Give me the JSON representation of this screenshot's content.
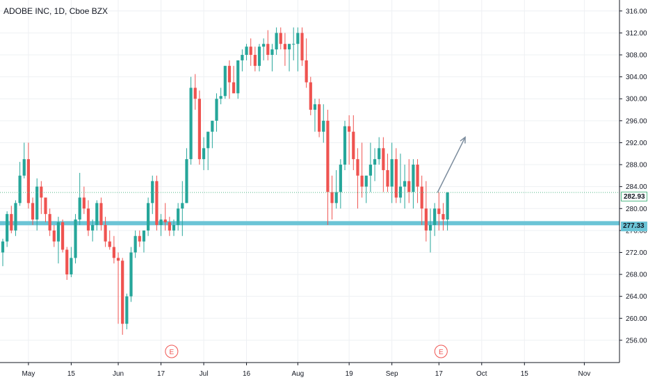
{
  "header": {
    "title": "ADOBE INC, 1D, Cboe BZX"
  },
  "price_labels": {
    "current": "282.93",
    "level": "277.33"
  },
  "chart_data": {
    "type": "candlestick",
    "symbol": "ADOBE INC",
    "interval": "1D",
    "exchange": "Cboe BZX",
    "ylim": [
      252,
      318
    ],
    "y_ticks": [
      256,
      260,
      264,
      268,
      272,
      276,
      280,
      284,
      288,
      292,
      296,
      300,
      304,
      308,
      312,
      316
    ],
    "y_tick_labels": [
      "256.00",
      "260.00",
      "264.00",
      "268.00",
      "272.00",
      "276.00",
      "280.00",
      "284.00",
      "288.00",
      "292.00",
      "296.00",
      "300.00",
      "304.00",
      "308.00",
      "312.00",
      "316.00"
    ],
    "x_ticks": [
      {
        "label": "May",
        "bar": 6
      },
      {
        "label": "15",
        "bar": 16
      },
      {
        "label": "Jun",
        "bar": 27
      },
      {
        "label": "17",
        "bar": 37
      },
      {
        "label": "Jul",
        "bar": 47
      },
      {
        "label": "16",
        "bar": 57
      },
      {
        "label": "Aug",
        "bar": 69
      },
      {
        "label": "19",
        "bar": 81
      },
      {
        "label": "Sep",
        "bar": 91
      },
      {
        "label": "17",
        "bar": 102
      },
      {
        "label": "Oct",
        "bar": 112
      },
      {
        "label": "15",
        "bar": 122
      },
      {
        "label": "Nov",
        "bar": 136
      }
    ],
    "support_level": 277.33,
    "last_price": 282.93,
    "earnings_markers": [
      {
        "label": "E",
        "bar": 39
      },
      {
        "label": "E",
        "bar": 102
      }
    ],
    "arrow": {
      "from": {
        "bar": 101,
        "price": 282.9
      },
      "to": {
        "bar": 107,
        "price": 293
      }
    },
    "colors": {
      "up": "#26a69a",
      "down": "#ef5350",
      "support": "#6bc4d6",
      "last_price": "#53b987",
      "arrow": "#7a8b9c",
      "earnings": "#ef5350"
    },
    "candles": [
      [
        272,
        274.5,
        269.5,
        274
      ],
      [
        274,
        279.5,
        273,
        279
      ],
      [
        279,
        280.5,
        275.5,
        276
      ],
      [
        276,
        281.5,
        275,
        281
      ],
      [
        281,
        288.5,
        280.5,
        286
      ],
      [
        286,
        292,
        285.5,
        289
      ],
      [
        289,
        292,
        280,
        281
      ],
      [
        281,
        282,
        277,
        278
      ],
      [
        278,
        285.5,
        276,
        284
      ],
      [
        284,
        285,
        279,
        282
      ],
      [
        282,
        282,
        277.5,
        279
      ],
      [
        279,
        280,
        275,
        276
      ],
      [
        276,
        277,
        273,
        274
      ],
      [
        274,
        278.5,
        270,
        277.5
      ],
      [
        277.5,
        278,
        272,
        272.5
      ],
      [
        272.5,
        273,
        267,
        268
      ],
      [
        268,
        273,
        267.5,
        271
      ],
      [
        271,
        279,
        270,
        278
      ],
      [
        278,
        286.5,
        277,
        282
      ],
      [
        282,
        284,
        279,
        280
      ],
      [
        280,
        281.5,
        275,
        276
      ],
      [
        276,
        278,
        274,
        277
      ],
      [
        277,
        281.5,
        276,
        281
      ],
      [
        281,
        282,
        276,
        277
      ],
      [
        277,
        278.5,
        273,
        274
      ],
      [
        274,
        276,
        272.5,
        273
      ],
      [
        273,
        275,
        270,
        271
      ],
      [
        271,
        272,
        259,
        270.5
      ],
      [
        270.5,
        271,
        257,
        259
      ],
      [
        259,
        264.5,
        258,
        264
      ],
      [
        264,
        273,
        263,
        272
      ],
      [
        272,
        276,
        271,
        275
      ],
      [
        275,
        276,
        273,
        274
      ],
      [
        274,
        276,
        272,
        276
      ],
      [
        276,
        282,
        275,
        281
      ],
      [
        281,
        286,
        279,
        285
      ],
      [
        285,
        286,
        276,
        277
      ],
      [
        277,
        279,
        275,
        278
      ],
      [
        278,
        281,
        276,
        277.5
      ],
      [
        277.5,
        278.5,
        275,
        276
      ],
      [
        276,
        278,
        275,
        277
      ],
      [
        277,
        281,
        276,
        280
      ],
      [
        280,
        285,
        275,
        281
      ],
      [
        281,
        291,
        281,
        289
      ],
      [
        289,
        304,
        288,
        302
      ],
      [
        302,
        304.5,
        298,
        300
      ],
      [
        300,
        301.5,
        288,
        289
      ],
      [
        289,
        293,
        287,
        291
      ],
      [
        291,
        294,
        287,
        294
      ],
      [
        294,
        296,
        291,
        296
      ],
      [
        296,
        301,
        294,
        300
      ],
      [
        300,
        302,
        299,
        300.5
      ],
      [
        300.5,
        306,
        300,
        306
      ],
      [
        306,
        307,
        300,
        303
      ],
      [
        303,
        306,
        301,
        301
      ],
      [
        301,
        307,
        300,
        307
      ],
      [
        307,
        309,
        305,
        308
      ],
      [
        308,
        310,
        307,
        309.5
      ],
      [
        309.5,
        311,
        306,
        308
      ],
      [
        308,
        309.5,
        305,
        306
      ],
      [
        306,
        310,
        305,
        309.5
      ],
      [
        309.5,
        311,
        307,
        310
      ],
      [
        310,
        312.5,
        307,
        308
      ],
      [
        308,
        310,
        305,
        309
      ],
      [
        309,
        313,
        308,
        312
      ],
      [
        312,
        313,
        309,
        310
      ],
      [
        310,
        312,
        306,
        309
      ],
      [
        309,
        310,
        305,
        310
      ],
      [
        310,
        313,
        307,
        310
      ],
      [
        310,
        313,
        305,
        312
      ],
      [
        312,
        313,
        306,
        307
      ],
      [
        307,
        311,
        302,
        303
      ],
      [
        303,
        304,
        297,
        298
      ],
      [
        298,
        300,
        294,
        299
      ],
      [
        299,
        300,
        293,
        294
      ],
      [
        294,
        299,
        292,
        296
      ],
      [
        296,
        298,
        277,
        283
      ],
      [
        283,
        286,
        278,
        281
      ],
      [
        281,
        287,
        280,
        283
      ],
      [
        283,
        289,
        280,
        288
      ],
      [
        288,
        296,
        287,
        295
      ],
      [
        295,
        297,
        288,
        294
      ],
      [
        294,
        297,
        287,
        289
      ],
      [
        289,
        291,
        280,
        286
      ],
      [
        286,
        292,
        282,
        284
      ],
      [
        284,
        286,
        281,
        286
      ],
      [
        286,
        292,
        283,
        288
      ],
      [
        288,
        291,
        285,
        289
      ],
      [
        289,
        293,
        288,
        291
      ],
      [
        291,
        293,
        283,
        287
      ],
      [
        287,
        290,
        283,
        284
      ],
      [
        284,
        292,
        281,
        289
      ],
      [
        289,
        291,
        281,
        282
      ],
      [
        282,
        290,
        281,
        284
      ],
      [
        284,
        288,
        280,
        285
      ],
      [
        285,
        289,
        281,
        283
      ],
      [
        283,
        289,
        280,
        288
      ],
      [
        288,
        289,
        281,
        284
      ],
      [
        284,
        286,
        277,
        280
      ],
      [
        280,
        285,
        274,
        276
      ],
      [
        276,
        280,
        272,
        277
      ],
      [
        277,
        281,
        275,
        280
      ],
      [
        280,
        283,
        276,
        279
      ],
      [
        279,
        281,
        276,
        278
      ],
      [
        278,
        283,
        276,
        282.93
      ]
    ]
  }
}
